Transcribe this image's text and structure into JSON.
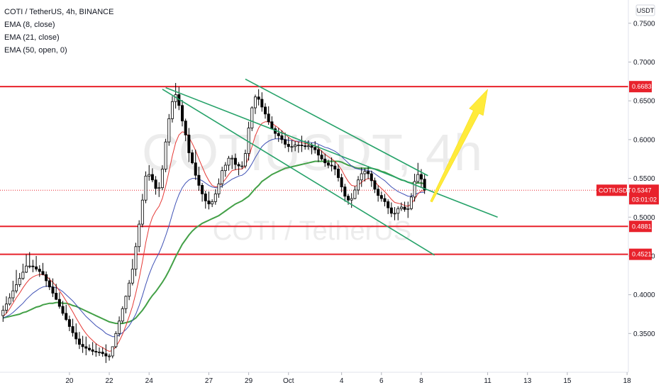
{
  "chart_data": {
    "type": "candlestick",
    "title": "COTI / TetherUS, 4h, BINANCE",
    "watermark_symbol": "COTIUSDT, 4h",
    "watermark_name": "COTI / TetherUS",
    "indicators": [
      "EMA (8, close)",
      "EMA (21, close)",
      "EMA (50, open, 0)"
    ],
    "indicator_colors": [
      "#e53935",
      "#3f51b5",
      "#43a047"
    ],
    "currency_label": "USDT",
    "ylim": [
      0.3,
      0.78
    ],
    "y_ticks": [
      "0.7500",
      "0.7000",
      "0.6500",
      "0.6000",
      "0.5500",
      "0.5000",
      "0.4500",
      "0.4000",
      "0.3500"
    ],
    "x_ticks": [
      "20",
      "22",
      "24",
      "27",
      "29",
      "Oct",
      "4",
      "6",
      "8",
      "11",
      "13",
      "15",
      "18"
    ],
    "x_tick_index": [
      20,
      32,
      44,
      62,
      74,
      86,
      102,
      114,
      126,
      146,
      158,
      170,
      188
    ],
    "last_index": 127,
    "horizontal_levels": [
      {
        "label": "0.6683",
        "value": 0.6683
      },
      {
        "label": "0.4881",
        "value": 0.4881
      },
      {
        "label": "0.4521",
        "value": 0.4521
      }
    ],
    "level_color": "#e8222c",
    "current_price": {
      "symbol": "COTIUSDT",
      "price": "0.5347",
      "countdown": "03:01:02",
      "value": 0.5347,
      "color": "#e8222c"
    },
    "channel": {
      "color": "#26a269",
      "lines": [
        {
          "start": [
            49,
            0.667
          ],
          "end": [
            149,
            0.5
          ]
        },
        {
          "start": [
            73,
            0.678
          ],
          "end": [
            128,
            0.5535
          ]
        },
        {
          "start": [
            48,
            0.665
          ],
          "end": [
            130,
            0.451
          ]
        }
      ]
    },
    "projection_arrow": {
      "color": "#ffeb3b",
      "from": [
        129,
        0.52
      ],
      "to": [
        146,
        0.665
      ]
    },
    "candle_colors": {
      "body": "#000000",
      "up_fill": "#ffffff",
      "down_fill": "#000000"
    },
    "candles": {
      "start_index": 0,
      "open": [
        0.373,
        0.38,
        0.388,
        0.396,
        0.405,
        0.413,
        0.421,
        0.429,
        0.437,
        0.437,
        0.436,
        0.433,
        0.43,
        0.426,
        0.418,
        0.41,
        0.402,
        0.394,
        0.385,
        0.376,
        0.368,
        0.359,
        0.351,
        0.343,
        0.336,
        0.333,
        0.331,
        0.329,
        0.327,
        0.326,
        0.326,
        0.324,
        0.321,
        0.321,
        0.333,
        0.35,
        0.366,
        0.382,
        0.398,
        0.415,
        0.433,
        0.462,
        0.491,
        0.522,
        0.553,
        0.555,
        0.548,
        0.537,
        0.538,
        0.562,
        0.597,
        0.627,
        0.649,
        0.658,
        0.644,
        0.624,
        0.606,
        0.583,
        0.57,
        0.554,
        0.541,
        0.53,
        0.521,
        0.517,
        0.52,
        0.53,
        0.543,
        0.56,
        0.567,
        0.576,
        0.576,
        0.568,
        0.566,
        0.566,
        0.582,
        0.615,
        0.641,
        0.655,
        0.652,
        0.642,
        0.633,
        0.623,
        0.614,
        0.608,
        0.605,
        0.6,
        0.594,
        0.591,
        0.591,
        0.593,
        0.593,
        0.592,
        0.591,
        0.592,
        0.59,
        0.587,
        0.58,
        0.575,
        0.57,
        0.567,
        0.566,
        0.562,
        0.551,
        0.539,
        0.527,
        0.522,
        0.524,
        0.535,
        0.548,
        0.556,
        0.559,
        0.556,
        0.547,
        0.536,
        0.528,
        0.524,
        0.52,
        0.512,
        0.505,
        0.505,
        0.511,
        0.513,
        0.51,
        0.511,
        0.526,
        0.546,
        0.555,
        0.549
      ],
      "high": [
        0.386,
        0.398,
        0.402,
        0.418,
        0.432,
        0.428,
        0.44,
        0.452,
        0.455,
        0.445,
        0.45,
        0.438,
        0.441,
        0.43,
        0.422,
        0.421,
        0.414,
        0.403,
        0.392,
        0.387,
        0.373,
        0.369,
        0.363,
        0.352,
        0.347,
        0.346,
        0.336,
        0.339,
        0.337,
        0.332,
        0.332,
        0.336,
        0.324,
        0.332,
        0.353,
        0.372,
        0.385,
        0.399,
        0.419,
        0.446,
        0.467,
        0.496,
        0.53,
        0.559,
        0.567,
        0.563,
        0.553,
        0.545,
        0.567,
        0.601,
        0.633,
        0.656,
        0.673,
        0.668,
        0.651,
        0.627,
        0.615,
        0.587,
        0.587,
        0.565,
        0.544,
        0.534,
        0.533,
        0.523,
        0.536,
        0.55,
        0.565,
        0.571,
        0.579,
        0.58,
        0.582,
        0.571,
        0.572,
        0.587,
        0.623,
        0.643,
        0.658,
        0.665,
        0.661,
        0.647,
        0.643,
        0.63,
        0.617,
        0.615,
        0.612,
        0.609,
        0.603,
        0.599,
        0.598,
        0.597,
        0.605,
        0.599,
        0.599,
        0.596,
        0.598,
        0.593,
        0.586,
        0.582,
        0.574,
        0.577,
        0.572,
        0.568,
        0.556,
        0.543,
        0.53,
        0.531,
        0.54,
        0.553,
        0.564,
        0.563,
        0.566,
        0.56,
        0.551,
        0.541,
        0.533,
        0.53,
        0.523,
        0.519,
        0.513,
        0.514,
        0.519,
        0.52,
        0.52,
        0.531,
        0.556,
        0.57,
        0.562,
        0.555
      ],
      "low": [
        0.365,
        0.376,
        0.386,
        0.391,
        0.402,
        0.41,
        0.419,
        0.428,
        0.434,
        0.429,
        0.43,
        0.423,
        0.425,
        0.41,
        0.406,
        0.397,
        0.393,
        0.382,
        0.373,
        0.366,
        0.353,
        0.346,
        0.336,
        0.33,
        0.325,
        0.322,
        0.327,
        0.322,
        0.32,
        0.321,
        0.32,
        0.312,
        0.315,
        0.318,
        0.331,
        0.346,
        0.363,
        0.376,
        0.393,
        0.412,
        0.424,
        0.455,
        0.487,
        0.518,
        0.547,
        0.545,
        0.529,
        0.526,
        0.535,
        0.558,
        0.592,
        0.622,
        0.64,
        0.638,
        0.617,
        0.598,
        0.571,
        0.568,
        0.548,
        0.534,
        0.52,
        0.511,
        0.51,
        0.513,
        0.516,
        0.525,
        0.538,
        0.552,
        0.56,
        0.562,
        0.561,
        0.554,
        0.562,
        0.563,
        0.573,
        0.611,
        0.633,
        0.644,
        0.636,
        0.627,
        0.619,
        0.614,
        0.601,
        0.597,
        0.595,
        0.589,
        0.584,
        0.584,
        0.585,
        0.583,
        0.584,
        0.587,
        0.587,
        0.581,
        0.582,
        0.571,
        0.573,
        0.565,
        0.563,
        0.559,
        0.554,
        0.546,
        0.532,
        0.52,
        0.516,
        0.512,
        0.523,
        0.529,
        0.539,
        0.546,
        0.549,
        0.539,
        0.531,
        0.52,
        0.52,
        0.514,
        0.504,
        0.5,
        0.496,
        0.496,
        0.508,
        0.507,
        0.499,
        0.509,
        0.52,
        0.544,
        0.539,
        0.53
      ],
      "close": [
        0.38,
        0.388,
        0.396,
        0.405,
        0.413,
        0.421,
        0.429,
        0.437,
        0.437,
        0.436,
        0.433,
        0.43,
        0.426,
        0.418,
        0.41,
        0.402,
        0.394,
        0.385,
        0.376,
        0.368,
        0.359,
        0.351,
        0.343,
        0.336,
        0.333,
        0.331,
        0.329,
        0.327,
        0.326,
        0.326,
        0.324,
        0.321,
        0.321,
        0.333,
        0.35,
        0.366,
        0.382,
        0.398,
        0.415,
        0.433,
        0.462,
        0.491,
        0.522,
        0.553,
        0.555,
        0.548,
        0.537,
        0.538,
        0.562,
        0.597,
        0.627,
        0.649,
        0.658,
        0.644,
        0.624,
        0.606,
        0.583,
        0.57,
        0.554,
        0.541,
        0.53,
        0.521,
        0.517,
        0.52,
        0.53,
        0.543,
        0.56,
        0.567,
        0.576,
        0.576,
        0.568,
        0.566,
        0.566,
        0.582,
        0.615,
        0.641,
        0.655,
        0.652,
        0.642,
        0.633,
        0.623,
        0.614,
        0.608,
        0.605,
        0.6,
        0.594,
        0.591,
        0.591,
        0.593,
        0.593,
        0.592,
        0.591,
        0.592,
        0.59,
        0.587,
        0.58,
        0.575,
        0.57,
        0.567,
        0.566,
        0.562,
        0.551,
        0.539,
        0.527,
        0.522,
        0.524,
        0.535,
        0.548,
        0.556,
        0.559,
        0.556,
        0.547,
        0.536,
        0.528,
        0.524,
        0.52,
        0.512,
        0.505,
        0.505,
        0.511,
        0.513,
        0.51,
        0.511,
        0.526,
        0.546,
        0.555,
        0.549,
        0.535
      ]
    },
    "ema_8": {
      "start_index": 0,
      "values": [
        0.372,
        0.376,
        0.382,
        0.389,
        0.396,
        0.402,
        0.409,
        0.415,
        0.42,
        0.423,
        0.425,
        0.426,
        0.426,
        0.424,
        0.42,
        0.416,
        0.411,
        0.405,
        0.399,
        0.392,
        0.385,
        0.378,
        0.37,
        0.363,
        0.356,
        0.35,
        0.345,
        0.341,
        0.337,
        0.334,
        0.332,
        0.329,
        0.327,
        0.328,
        0.333,
        0.34,
        0.349,
        0.36,
        0.372,
        0.385,
        0.402,
        0.421,
        0.443,
        0.467,
        0.487,
        0.5,
        0.508,
        0.514,
        0.524,
        0.54,
        0.559,
        0.579,
        0.596,
        0.606,
        0.61,
        0.609,
        0.603,
        0.595,
        0.586,
        0.575,
        0.565,
        0.555,
        0.547,
        0.541,
        0.539,
        0.54,
        0.544,
        0.549,
        0.555,
        0.56,
        0.561,
        0.562,
        0.562,
        0.566,
        0.577,
        0.591,
        0.605,
        0.615,
        0.621,
        0.623,
        0.623,
        0.621,
        0.618,
        0.615,
        0.611,
        0.607,
        0.603,
        0.6,
        0.598,
        0.597,
        0.596,
        0.595,
        0.594,
        0.593,
        0.592,
        0.589,
        0.585,
        0.581,
        0.578,
        0.575,
        0.572,
        0.567,
        0.561,
        0.553,
        0.546,
        0.541,
        0.54,
        0.541,
        0.545,
        0.548,
        0.55,
        0.549,
        0.546,
        0.541,
        0.537,
        0.533,
        0.528,
        0.523,
        0.519,
        0.518,
        0.517,
        0.515,
        0.514,
        0.517,
        0.523,
        0.53,
        0.534,
        0.534
      ]
    },
    "ema_21": {
      "start_index": 0,
      "values": [
        0.37,
        0.372,
        0.374,
        0.377,
        0.381,
        0.385,
        0.389,
        0.394,
        0.398,
        0.402,
        0.405,
        0.408,
        0.41,
        0.411,
        0.411,
        0.41,
        0.409,
        0.407,
        0.404,
        0.4,
        0.396,
        0.392,
        0.387,
        0.382,
        0.377,
        0.372,
        0.368,
        0.364,
        0.36,
        0.357,
        0.354,
        0.35,
        0.348,
        0.346,
        0.346,
        0.348,
        0.351,
        0.355,
        0.36,
        0.367,
        0.375,
        0.386,
        0.399,
        0.413,
        0.426,
        0.437,
        0.446,
        0.454,
        0.464,
        0.476,
        0.489,
        0.504,
        0.518,
        0.529,
        0.538,
        0.544,
        0.548,
        0.55,
        0.55,
        0.549,
        0.547,
        0.544,
        0.541,
        0.539,
        0.538,
        0.538,
        0.54,
        0.543,
        0.546,
        0.549,
        0.551,
        0.553,
        0.554,
        0.557,
        0.562,
        0.569,
        0.577,
        0.584,
        0.591,
        0.595,
        0.598,
        0.6,
        0.601,
        0.601,
        0.601,
        0.6,
        0.599,
        0.599,
        0.598,
        0.598,
        0.598,
        0.597,
        0.597,
        0.596,
        0.596,
        0.594,
        0.592,
        0.59,
        0.589,
        0.587,
        0.585,
        0.582,
        0.578,
        0.574,
        0.57,
        0.566,
        0.563,
        0.562,
        0.561,
        0.561,
        0.56,
        0.559,
        0.556,
        0.553,
        0.55,
        0.547,
        0.543,
        0.539,
        0.536,
        0.533,
        0.531,
        0.529,
        0.527,
        0.527,
        0.529,
        0.531,
        0.532,
        0.532
      ]
    },
    "ema_50": {
      "start_index": 0,
      "values": [
        0.37,
        0.371,
        0.372,
        0.373,
        0.374,
        0.375,
        0.377,
        0.378,
        0.38,
        0.382,
        0.384,
        0.385,
        0.387,
        0.388,
        0.389,
        0.389,
        0.39,
        0.39,
        0.389,
        0.389,
        0.388,
        0.386,
        0.385,
        0.383,
        0.381,
        0.379,
        0.377,
        0.375,
        0.373,
        0.371,
        0.369,
        0.367,
        0.365,
        0.364,
        0.363,
        0.363,
        0.363,
        0.364,
        0.365,
        0.367,
        0.37,
        0.375,
        0.38,
        0.386,
        0.393,
        0.399,
        0.404,
        0.41,
        0.416,
        0.423,
        0.431,
        0.44,
        0.449,
        0.457,
        0.465,
        0.471,
        0.477,
        0.482,
        0.486,
        0.489,
        0.492,
        0.494,
        0.496,
        0.498,
        0.5,
        0.502,
        0.505,
        0.508,
        0.511,
        0.514,
        0.517,
        0.519,
        0.521,
        0.524,
        0.527,
        0.532,
        0.537,
        0.541,
        0.546,
        0.549,
        0.552,
        0.555,
        0.557,
        0.559,
        0.561,
        0.563,
        0.564,
        0.565,
        0.566,
        0.567,
        0.568,
        0.569,
        0.57,
        0.571,
        0.572,
        0.572,
        0.572,
        0.572,
        0.572,
        0.572,
        0.572,
        0.572,
        0.571,
        0.569,
        0.567,
        0.566,
        0.564,
        0.563,
        0.563,
        0.563,
        0.563,
        0.563,
        0.562,
        0.561,
        0.559,
        0.558,
        0.556,
        0.554,
        0.552,
        0.55,
        0.548,
        0.547,
        0.545,
        0.544,
        0.544,
        0.544,
        0.544,
        0.543
      ]
    }
  }
}
